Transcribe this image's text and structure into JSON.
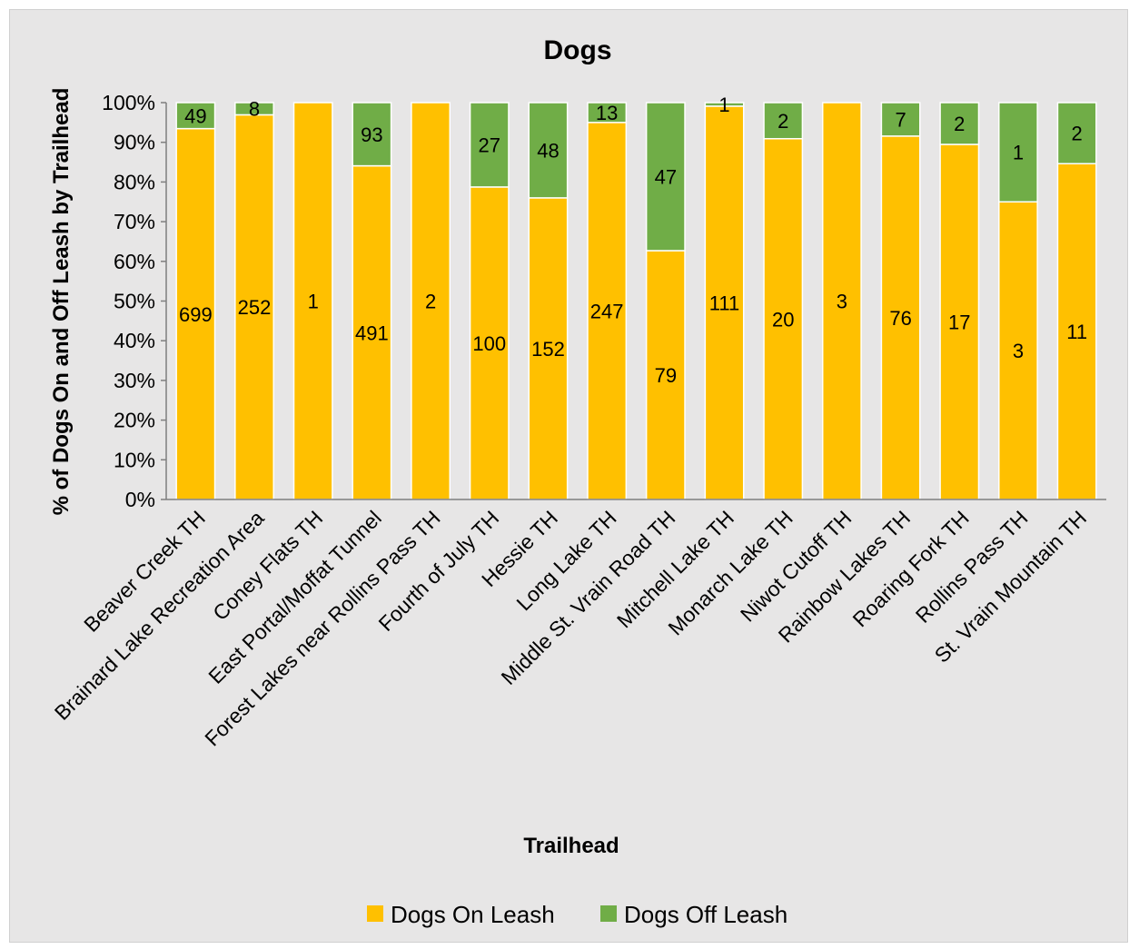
{
  "chart_data": {
    "type": "bar",
    "stacked": "percent",
    "title": "Dogs",
    "xlabel": "Trailhead",
    "ylabel": "% of Dogs On and Off Leash by Trailhead",
    "ylim": [
      0,
      100
    ],
    "yticks": [
      "0%",
      "10%",
      "20%",
      "30%",
      "40%",
      "50%",
      "60%",
      "70%",
      "80%",
      "90%",
      "100%"
    ],
    "categories": [
      "Beaver Creek TH",
      "Brainard Lake Recreation Area",
      "Coney Flats TH",
      "East Portal/Moffat Tunnel",
      "Forest Lakes near Rollins Pass TH",
      "Fourth of July TH",
      "Hessie TH",
      "Long Lake TH",
      "Middle St. Vrain Road TH",
      "Mitchell Lake TH",
      "Monarch Lake TH",
      "Niwot Cutoff TH",
      "Rainbow Lakes TH",
      "Roaring Fork TH",
      "Rollins Pass TH",
      "St. Vrain Mountain TH"
    ],
    "series": [
      {
        "name": "Dogs On Leash",
        "color": "#ffc000",
        "values": [
          699,
          252,
          1,
          491,
          2,
          100,
          152,
          247,
          79,
          111,
          20,
          3,
          76,
          17,
          3,
          11
        ]
      },
      {
        "name": "Dogs Off Leash",
        "color": "#70ad47",
        "values": [
          49,
          8,
          0,
          93,
          0,
          27,
          48,
          13,
          47,
          1,
          2,
          0,
          7,
          2,
          1,
          2
        ]
      }
    ],
    "grid": false,
    "legend": "bottom"
  }
}
